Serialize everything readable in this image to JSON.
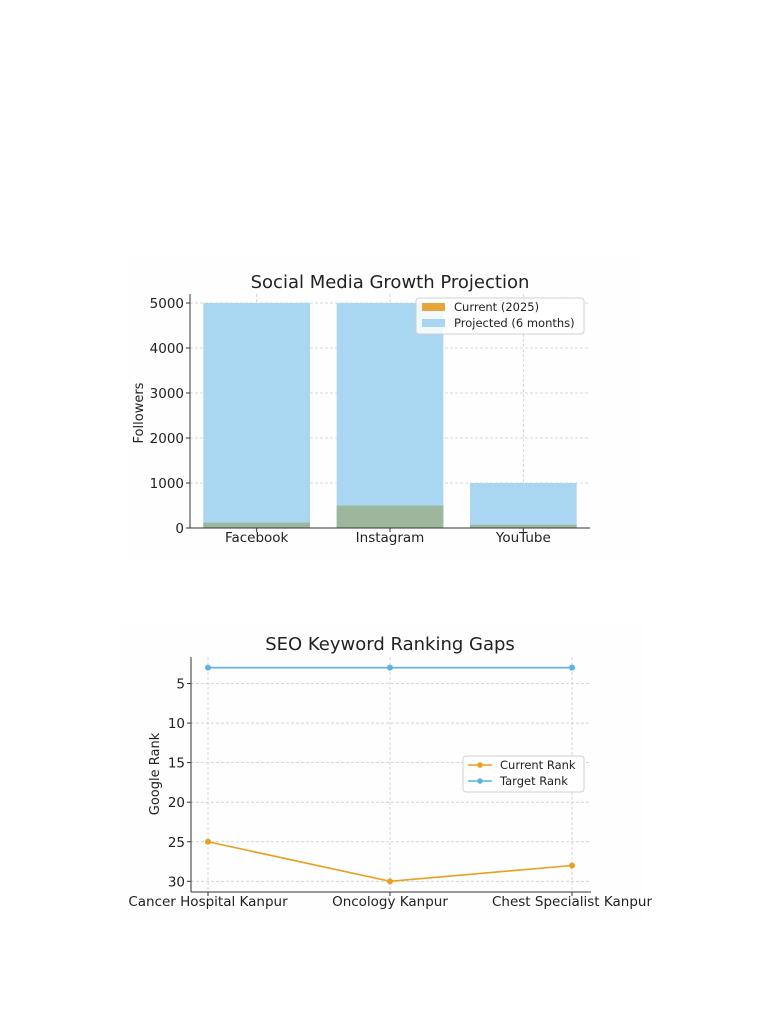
{
  "chart_data": [
    {
      "type": "bar",
      "title": "Social Media Growth Projection",
      "xlabel": "",
      "ylabel": "Followers",
      "categories": [
        "Facebook",
        "Instagram",
        "YouTube"
      ],
      "series": [
        {
          "name": "Current (2025)",
          "values": [
            120,
            500,
            70
          ],
          "color": "#e5a73a"
        },
        {
          "name": "Projected (6 months)",
          "values": [
            5000,
            5000,
            1000
          ],
          "color": "#a9d6f0"
        }
      ],
      "overlap_color": "#9cb79b",
      "ylim": [
        0,
        5200
      ],
      "yticks": [
        0,
        1000,
        2000,
        3000,
        4000,
        5000
      ],
      "grid": true,
      "legend_position": "top-right"
    },
    {
      "type": "line",
      "title": "SEO Keyword Ranking Gaps",
      "xlabel": "",
      "ylabel": "Google Rank",
      "categories": [
        "Cancer Hospital Kanpur",
        "Oncology Kanpur",
        "Chest Specialist Kanpur"
      ],
      "series": [
        {
          "name": "Current Rank",
          "values": [
            25,
            30,
            28
          ],
          "color": "#e8a020"
        },
        {
          "name": "Target Rank",
          "values": [
            3,
            3,
            3
          ],
          "color": "#5bb3e6"
        }
      ],
      "ylim": [
        31.35,
        1.65
      ],
      "y_inverted": true,
      "yticks": [
        5,
        10,
        15,
        20,
        25,
        30
      ],
      "grid": true,
      "legend_position": "center-right"
    }
  ]
}
